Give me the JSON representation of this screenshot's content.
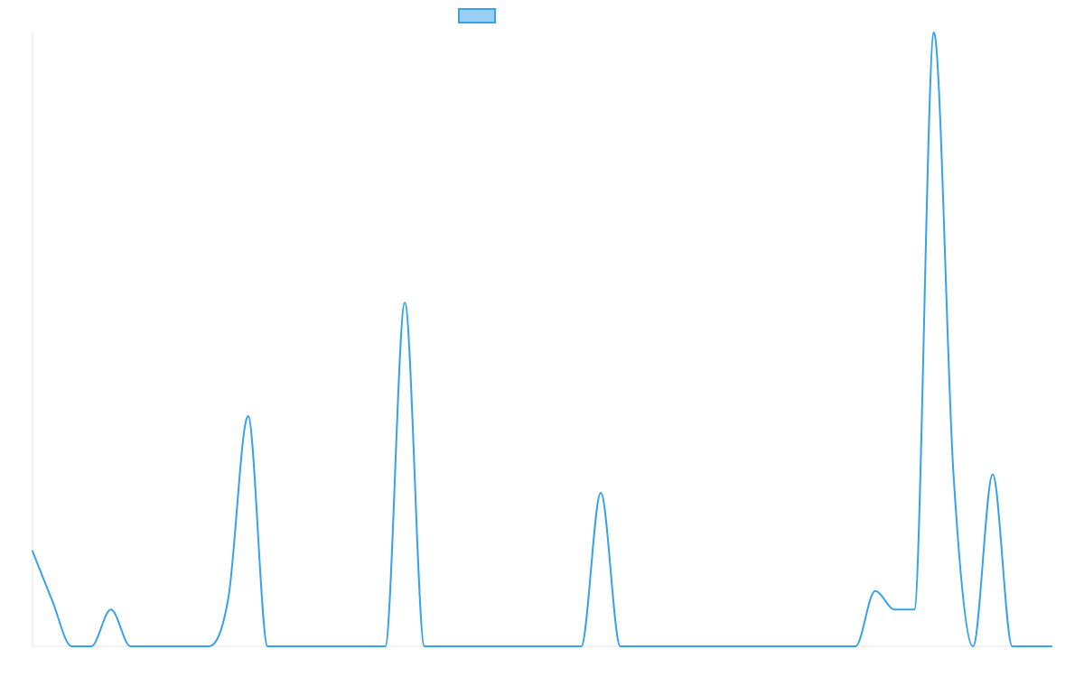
{
  "chart_data": {
    "type": "line",
    "title": "",
    "xlabel": "",
    "ylabel": "",
    "grid": false,
    "legend_position": "top-center",
    "series": [
      {
        "name": "",
        "color": "#36a2eb",
        "fill": "#9ad0f5",
        "values": [
          31,
          15,
          0,
          0,
          12,
          0,
          0,
          0,
          0,
          0,
          16,
          75,
          0,
          0,
          0,
          0,
          0,
          0,
          0,
          112,
          0,
          0,
          0,
          0,
          0,
          0,
          0,
          0,
          0,
          50,
          0,
          0,
          0,
          0,
          0,
          0,
          0,
          0,
          0,
          0,
          0,
          0,
          0,
          18,
          12,
          12,
          200,
          56,
          0,
          56,
          0,
          0,
          0
        ]
      }
    ],
    "x_count": 53,
    "ylim": [
      0,
      200
    ]
  }
}
